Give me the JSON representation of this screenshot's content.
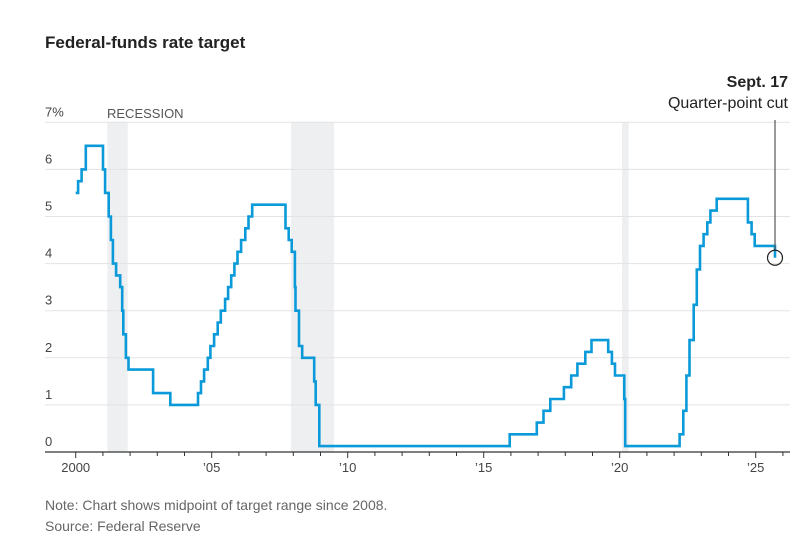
{
  "chart_data": {
    "type": "line",
    "step": true,
    "title": "Federal-funds rate target",
    "xlabel": "",
    "ylabel": "",
    "ylim": [
      0,
      7
    ],
    "xlim": [
      2000,
      2026
    ],
    "y_ticks": [
      "0",
      "1",
      "2",
      "3",
      "4",
      "5",
      "6",
      "7%"
    ],
    "x_ticks": [
      {
        "year": 2000,
        "label": "2000"
      },
      {
        "year": 2005,
        "label": "’05"
      },
      {
        "year": 2010,
        "label": "’10"
      },
      {
        "year": 2015,
        "label": "’15"
      },
      {
        "year": 2020,
        "label": "’20"
      },
      {
        "year": 2025,
        "label": "’25"
      }
    ],
    "grid": true,
    "line_color": "#0a9ad9",
    "recession_color": "#eeeff1",
    "recession_label": "RECESSION",
    "recessions": [
      [
        "2001-03-01",
        "2001-11-30"
      ],
      [
        "2007-12-01",
        "2009-06-30"
      ],
      [
        "2020-02-01",
        "2020-04-30"
      ]
    ],
    "points": [
      [
        "2000-01-01",
        5.5
      ],
      [
        "2000-02-02",
        5.75
      ],
      [
        "2000-03-21",
        6.0
      ],
      [
        "2000-05-16",
        6.5
      ],
      [
        "2001-01-03",
        6.0
      ],
      [
        "2001-01-31",
        5.5
      ],
      [
        "2001-03-20",
        5.0
      ],
      [
        "2001-04-18",
        4.5
      ],
      [
        "2001-05-15",
        4.0
      ],
      [
        "2001-06-27",
        3.75
      ],
      [
        "2001-08-21",
        3.5
      ],
      [
        "2001-09-17",
        3.0
      ],
      [
        "2001-10-02",
        2.5
      ],
      [
        "2001-11-06",
        2.0
      ],
      [
        "2001-12-11",
        1.75
      ],
      [
        "2002-11-06",
        1.25
      ],
      [
        "2003-06-25",
        1.0
      ],
      [
        "2004-06-30",
        1.25
      ],
      [
        "2004-08-10",
        1.5
      ],
      [
        "2004-09-21",
        1.75
      ],
      [
        "2004-11-10",
        2.0
      ],
      [
        "2004-12-14",
        2.25
      ],
      [
        "2005-02-02",
        2.5
      ],
      [
        "2005-03-22",
        2.75
      ],
      [
        "2005-05-03",
        3.0
      ],
      [
        "2005-06-30",
        3.25
      ],
      [
        "2005-08-09",
        3.5
      ],
      [
        "2005-09-20",
        3.75
      ],
      [
        "2005-11-01",
        4.0
      ],
      [
        "2005-12-13",
        4.25
      ],
      [
        "2006-01-31",
        4.5
      ],
      [
        "2006-03-28",
        4.75
      ],
      [
        "2006-05-10",
        5.0
      ],
      [
        "2006-06-29",
        5.25
      ],
      [
        "2007-09-18",
        4.75
      ],
      [
        "2007-10-31",
        4.5
      ],
      [
        "2007-12-11",
        4.25
      ],
      [
        "2008-01-22",
        3.5
      ],
      [
        "2008-01-30",
        3.0
      ],
      [
        "2008-03-18",
        2.25
      ],
      [
        "2008-04-30",
        2.0
      ],
      [
        "2008-10-08",
        1.5
      ],
      [
        "2008-10-29",
        1.0
      ],
      [
        "2008-12-16",
        0.125
      ],
      [
        "2015-12-16",
        0.375
      ],
      [
        "2016-12-14",
        0.625
      ],
      [
        "2017-03-15",
        0.875
      ],
      [
        "2017-06-14",
        1.125
      ],
      [
        "2017-12-13",
        1.375
      ],
      [
        "2018-03-21",
        1.625
      ],
      [
        "2018-06-13",
        1.875
      ],
      [
        "2018-09-26",
        2.125
      ],
      [
        "2018-12-19",
        2.375
      ],
      [
        "2019-07-31",
        2.125
      ],
      [
        "2019-09-18",
        1.875
      ],
      [
        "2019-10-30",
        1.625
      ],
      [
        "2020-03-03",
        1.125
      ],
      [
        "2020-03-15",
        0.125
      ],
      [
        "2022-03-16",
        0.375
      ],
      [
        "2022-05-04",
        0.875
      ],
      [
        "2022-06-15",
        1.625
      ],
      [
        "2022-07-27",
        2.375
      ],
      [
        "2022-09-21",
        3.125
      ],
      [
        "2022-11-02",
        3.875
      ],
      [
        "2022-12-14",
        4.375
      ],
      [
        "2023-02-01",
        4.625
      ],
      [
        "2023-03-22",
        4.875
      ],
      [
        "2023-05-03",
        5.125
      ],
      [
        "2023-07-26",
        5.375
      ],
      [
        "2024-09-18",
        4.875
      ],
      [
        "2024-11-07",
        4.625
      ],
      [
        "2024-12-18",
        4.375
      ],
      [
        "2025-09-17",
        4.125
      ]
    ],
    "annotation": {
      "date": "2025-09-17",
      "value": 4.125,
      "title": "Sept. 17",
      "text": "Quarter-point cut"
    }
  },
  "notes": {
    "note": "Note: Chart shows midpoint of target range since 2008.",
    "source": "Source: Federal Reserve"
  }
}
